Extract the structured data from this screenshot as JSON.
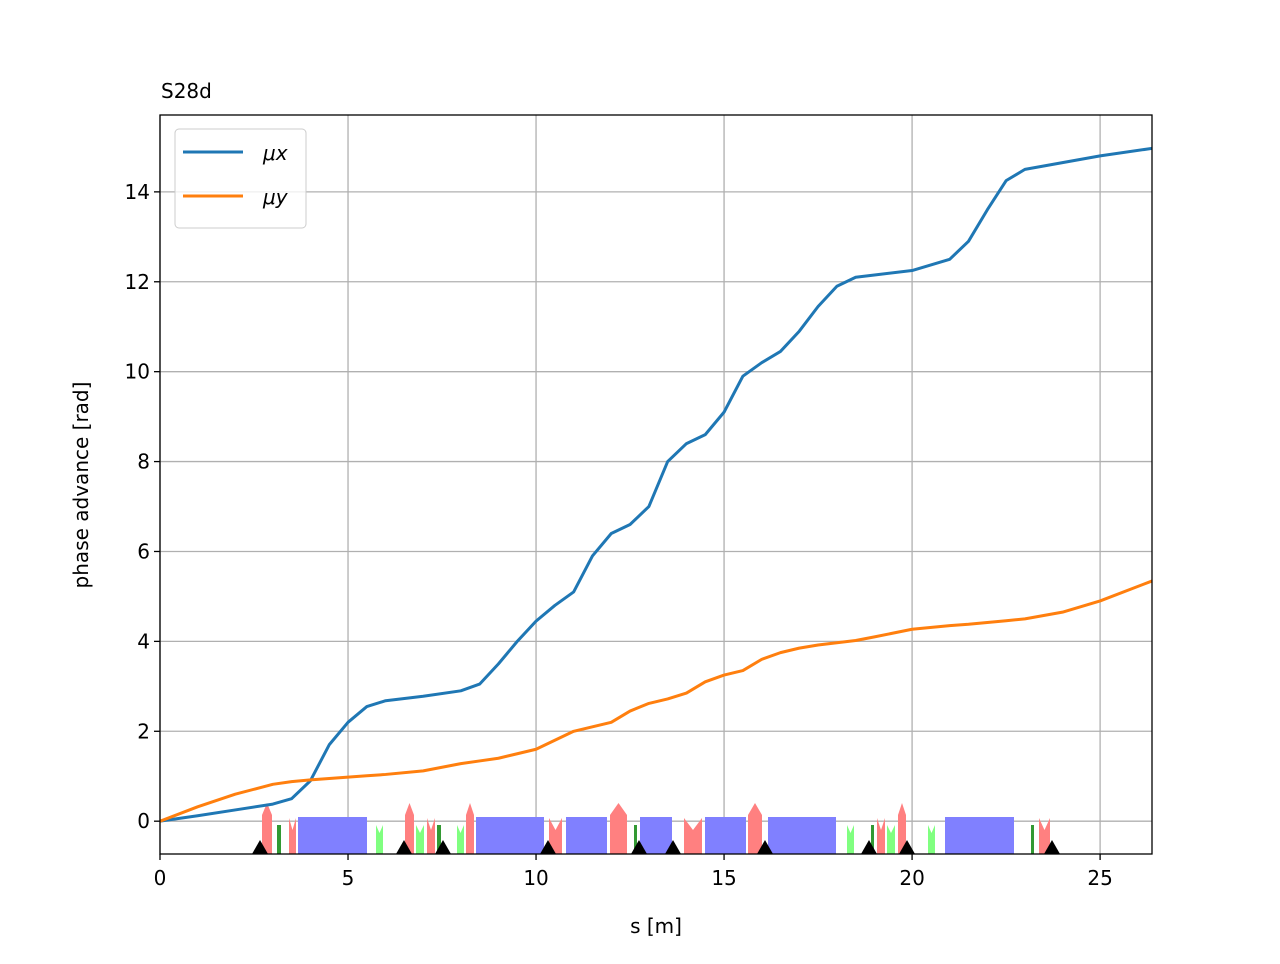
{
  "chart_data": {
    "type": "line",
    "title": "S28d",
    "x_label": "s [m]",
    "y_label": "phase advance [rad]",
    "x": [
      0,
      1,
      2,
      3,
      3.5,
      4,
      4.5,
      5,
      5.5,
      6,
      7,
      8,
      8.5,
      9,
      9.5,
      10,
      10.5,
      11,
      11.5,
      12,
      12.5,
      13,
      13.5,
      14,
      14.5,
      15,
      15.5,
      16,
      16.5,
      17,
      17.5,
      18,
      18.5,
      19,
      20,
      21,
      21.5,
      22,
      22.5,
      23,
      24,
      25,
      26.4
    ],
    "series": [
      {
        "name": "μx",
        "color": "#1f77b4",
        "values": [
          0,
          0.12,
          0.25,
          0.38,
          0.5,
          0.9,
          1.7,
          2.2,
          2.55,
          2.68,
          2.78,
          2.9,
          3.05,
          3.5,
          4.0,
          4.45,
          4.8,
          5.1,
          5.9,
          6.4,
          6.6,
          7.0,
          8.0,
          8.4,
          8.6,
          9.1,
          9.9,
          10.2,
          10.45,
          10.9,
          11.45,
          11.9,
          12.1,
          12.15,
          12.25,
          12.5,
          12.9,
          13.6,
          14.25,
          14.5,
          14.65,
          14.8,
          14.97
        ]
      },
      {
        "name": "μy",
        "color": "#ff7f0e",
        "values": [
          0,
          0.32,
          0.6,
          0.82,
          0.88,
          0.92,
          0.95,
          0.98,
          1.01,
          1.04,
          1.12,
          1.28,
          1.34,
          1.4,
          1.5,
          1.6,
          1.8,
          2.0,
          2.1,
          2.2,
          2.45,
          2.62,
          2.72,
          2.85,
          3.1,
          3.25,
          3.35,
          3.6,
          3.75,
          3.85,
          3.92,
          3.97,
          4.02,
          4.1,
          4.27,
          4.35,
          4.38,
          4.42,
          4.46,
          4.5,
          4.65,
          4.9,
          5.35
        ]
      }
    ],
    "xlim": [
      0,
      26.38
    ],
    "ylim": [
      -0.73,
      15.71
    ],
    "xticks": [
      0,
      5,
      10,
      15,
      20,
      25
    ],
    "yticks": [
      0,
      2,
      4,
      6,
      8,
      10,
      12,
      14
    ],
    "grid": true,
    "legend": "upper left"
  }
}
